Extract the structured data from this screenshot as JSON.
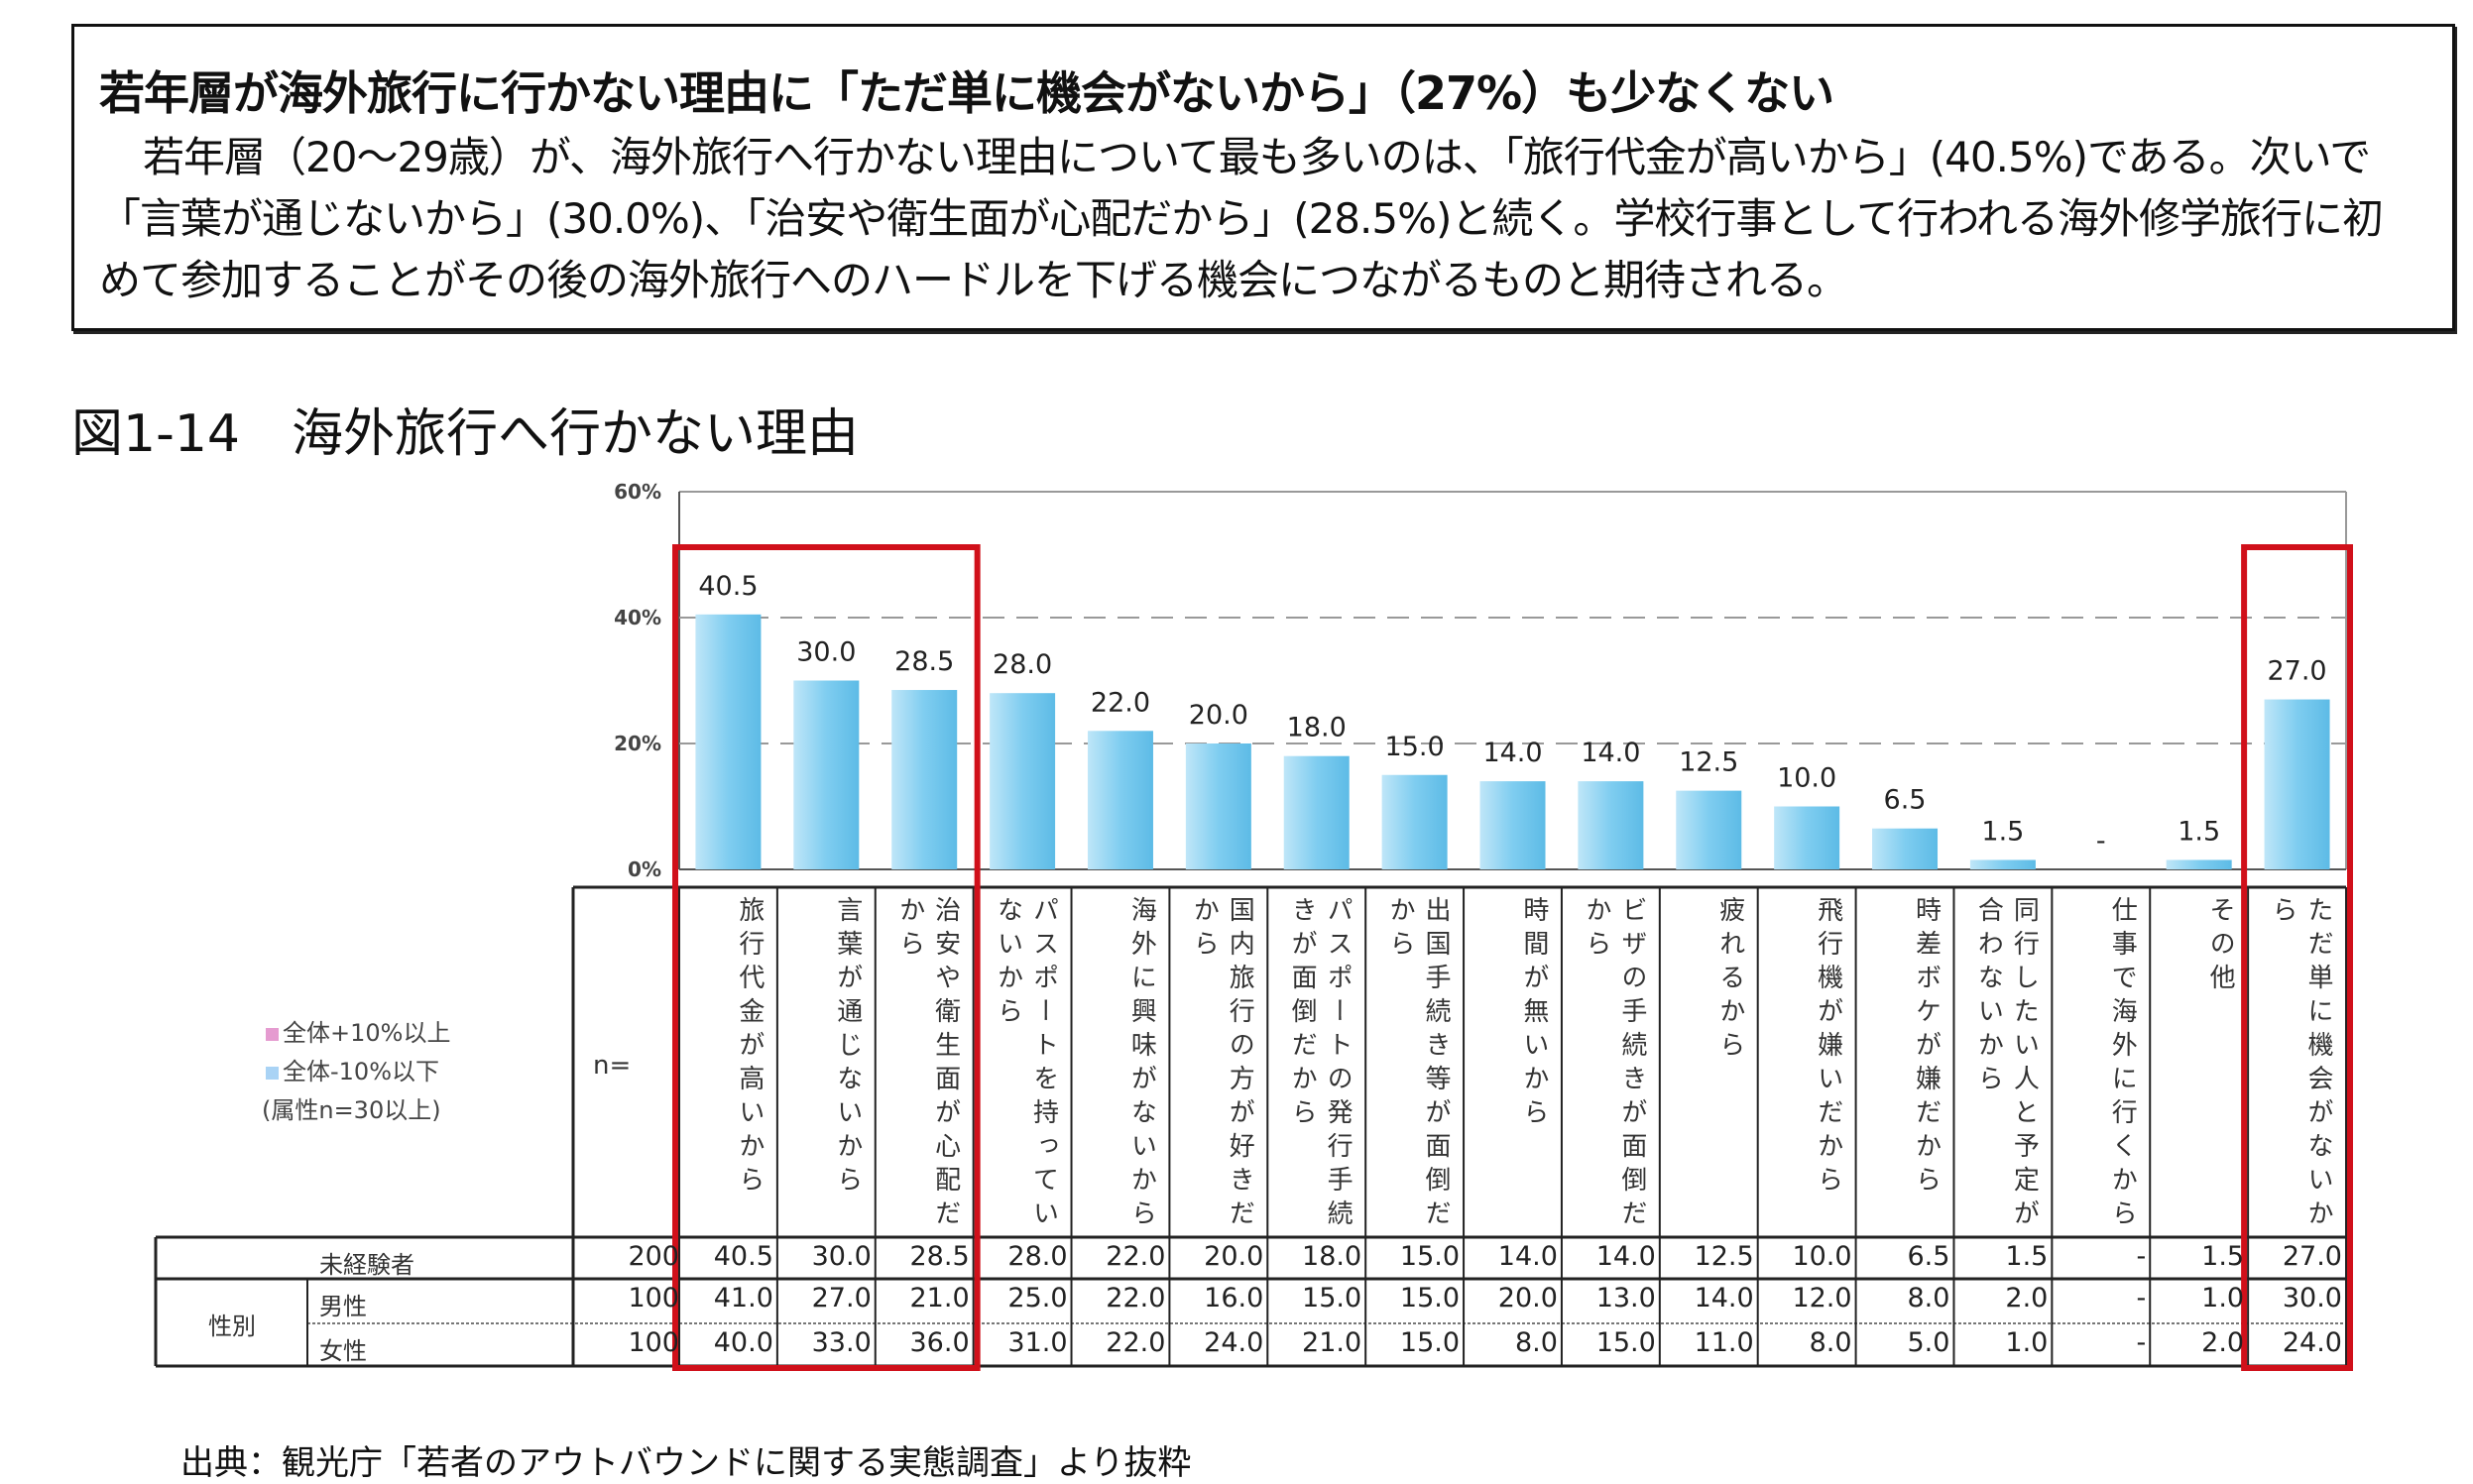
{
  "summary": {
    "headline": "若年層が海外旅行に行かない理由に「ただ単に機会がないから」（27%）も少なくない",
    "body": "若年層（20～29歳）が、海外旅行へ行かない理由について最も多いのは、「旅行代金が高いから」(40.5%)である。次いで「言葉が通じないから」(30.0%)、「治安や衛生面が心配だから」(28.5%)と続く。学校行事として行われる海外修学旅行に初めて参加することがその後の海外旅行へのハードルを下げる機会につながるものと期待される。"
  },
  "figure_title": "図1-14　海外旅行へ行かない理由",
  "source": "出典：観光庁「若者のアウトバウンドに関する実態調査」より抜粋",
  "legend": {
    "items": [
      {
        "label": "全体+10%以上",
        "color": "#e59bd0"
      },
      {
        "label": "全体-10%以下",
        "color": "#a9d3f5"
      }
    ],
    "note": "(属性n=30以上)"
  },
  "chart_data": {
    "type": "bar",
    "title": "海外旅行へ行かない理由",
    "ylim": [
      0,
      60
    ],
    "yticks": [
      "0%",
      "20%",
      "40%",
      "60%"
    ],
    "ytick_values": [
      0,
      20,
      40,
      60
    ],
    "grid": "dashed at 20% and 40%",
    "bar_color": "#7fcdf0",
    "highlight_color": "#d0101a",
    "categories": [
      "旅行代金が高いから",
      "言葉が通じないから",
      "治安や衛生面が心配だから",
      "パスポートを持っていないから",
      "海外に興味がないから",
      "国内旅行の方が好きだから",
      "パスポートの発行手続きが面倒だから",
      "出国手続き等が面倒だから",
      "時間が無いから",
      "ビザの手続きが面倒だから",
      "疲れるから",
      "飛行機が嫌いだから",
      "時差ボケが嫌だから",
      "同行したい人と予定が合わないから",
      "仕事で海外に行くから",
      "その他",
      "ただ単に機会がないから"
    ],
    "values": [
      40.5,
      30.0,
      28.5,
      28.0,
      22.0,
      20.0,
      18.0,
      15.0,
      14.0,
      14.0,
      12.5,
      10.0,
      6.5,
      1.5,
      null,
      1.5,
      27.0
    ],
    "value_labels": [
      "40.5",
      "30.0",
      "28.5",
      "28.0",
      "22.0",
      "20.0",
      "18.0",
      "15.0",
      "14.0",
      "14.0",
      "12.5",
      "10.0",
      "6.5",
      "1.5",
      "-",
      "1.5",
      "27.0"
    ],
    "highlighted_groups": [
      [
        0,
        2
      ],
      [
        16,
        16
      ]
    ],
    "table": {
      "n_header": "n=",
      "group_label": "性別",
      "rows": [
        {
          "label": "未経験者",
          "n": "200",
          "values": [
            "40.5",
            "30.0",
            "28.5",
            "28.0",
            "22.0",
            "20.0",
            "18.0",
            "15.0",
            "14.0",
            "14.0",
            "12.5",
            "10.0",
            "6.5",
            "1.5",
            "-",
            "1.5",
            "27.0"
          ]
        },
        {
          "label": "男性",
          "n": "100",
          "values": [
            "41.0",
            "27.0",
            "21.0",
            "25.0",
            "22.0",
            "16.0",
            "15.0",
            "15.0",
            "20.0",
            "13.0",
            "14.0",
            "12.0",
            "8.0",
            "2.0",
            "-",
            "1.0",
            "30.0"
          ]
        },
        {
          "label": "女性",
          "n": "100",
          "values": [
            "40.0",
            "33.0",
            "36.0",
            "31.0",
            "22.0",
            "24.0",
            "21.0",
            "15.0",
            "8.0",
            "15.0",
            "11.0",
            "8.0",
            "5.0",
            "1.0",
            "-",
            "2.0",
            "24.0"
          ]
        }
      ]
    }
  }
}
